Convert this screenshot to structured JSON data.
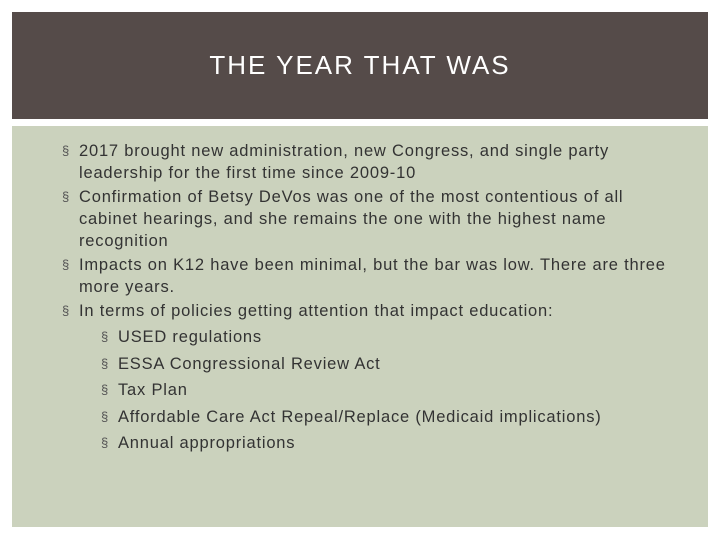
{
  "header": {
    "title": "THE YEAR THAT WAS"
  },
  "bullets": [
    {
      "text": "2017 brought new administration, new Congress, and single party leadership for the first time since 2009-10",
      "sub": []
    },
    {
      "text": "Confirmation of Betsy DeVos was one of the most contentious of all cabinet hearings, and she remains the one with the highest name recognition",
      "sub": []
    },
    {
      "text": "Impacts on K12 have been minimal, but the bar was low. There are three more years.",
      "sub": []
    },
    {
      "text": "In terms of policies getting attention that impact education:",
      "sub": [
        "USED regulations",
        "ESSA Congressional Review Act",
        "Tax Plan",
        "Affordable Care Act Repeal/Replace (Medicaid implications)",
        "Annual appropriations"
      ]
    }
  ]
}
